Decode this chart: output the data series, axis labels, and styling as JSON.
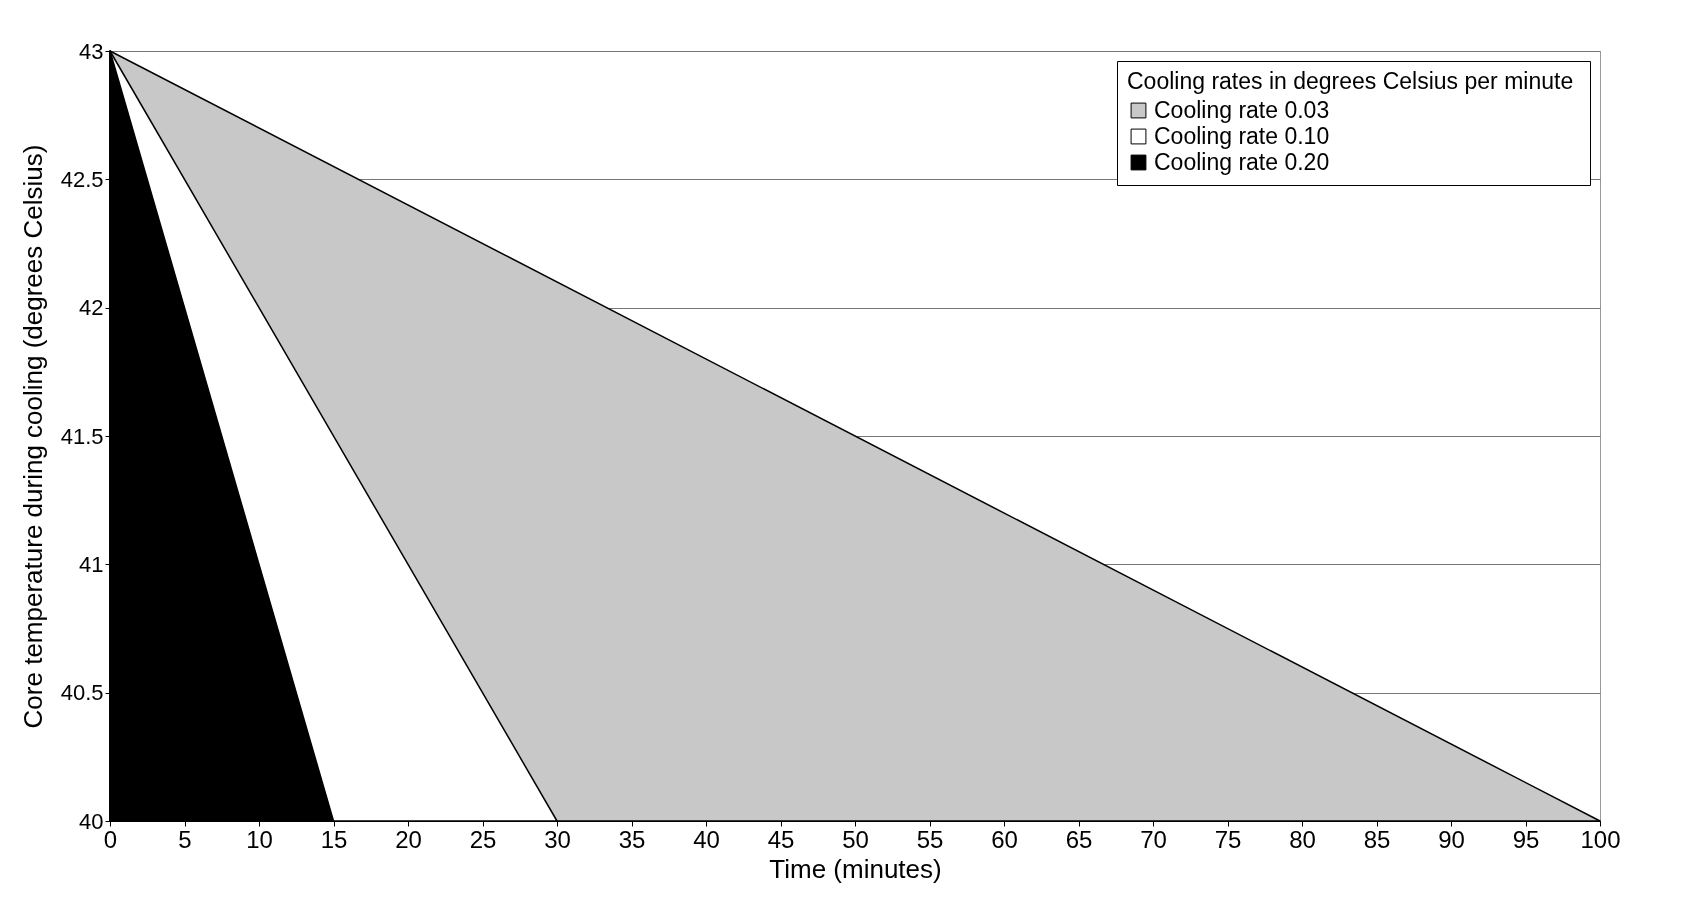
{
  "chart_data": {
    "type": "area",
    "xlabel": "Time (minutes)",
    "ylabel": "Core temperature during cooling (degrees Celsius)",
    "legend_title": "Cooling rates in  degrees Celsius per minute",
    "series": [
      {
        "name": "Cooling rate 0.03",
        "color": "#c8c8c8",
        "x": [
          0,
          100
        ],
        "values": [
          43,
          40
        ]
      },
      {
        "name": "Cooling rate 0.10",
        "color": "#ffffff",
        "x": [
          0,
          30
        ],
        "values": [
          43,
          40
        ]
      },
      {
        "name": "Cooling rate 0.20",
        "color": "#000000",
        "x": [
          0,
          15
        ],
        "values": [
          43,
          40
        ]
      }
    ],
    "xlim": [
      0,
      100
    ],
    "xticks": [
      0,
      5,
      10,
      15,
      20,
      25,
      30,
      35,
      40,
      45,
      50,
      55,
      60,
      65,
      70,
      75,
      80,
      85,
      90,
      95,
      100
    ],
    "ylim": [
      40,
      43
    ],
    "yticks": [
      40,
      40.5,
      41,
      41.5,
      42,
      42.5,
      43
    ],
    "grid": "y",
    "legend": "top right"
  }
}
